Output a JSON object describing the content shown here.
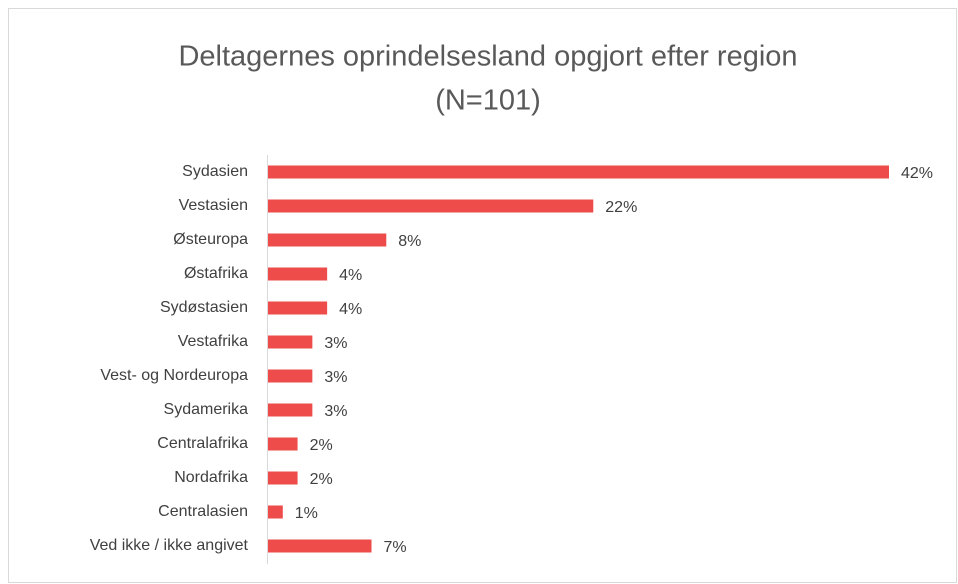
{
  "chart_data": {
    "type": "barh",
    "title": "Deltagernes oprindelsesland opgjort efter region",
    "subtitle": "(N=101)",
    "categories": [
      "Sydasien",
      "Vestasien",
      "Østeuropa",
      "Østafrika",
      "Sydøstasien",
      "Vestafrika",
      "Vest- og Nordeuropa",
      "Sydamerika",
      "Centralafrika",
      "Nordafrika",
      "Centralasien",
      "Ved ikke / ikke angivet"
    ],
    "values": [
      42,
      22,
      8,
      4,
      4,
      3,
      3,
      3,
      2,
      2,
      1,
      7
    ],
    "value_labels": [
      "42%",
      "22%",
      "8%",
      "4%",
      "4%",
      "3%",
      "3%",
      "3%",
      "2%",
      "2%",
      "1%",
      "7%"
    ],
    "color": "#ee4b4b"
  }
}
